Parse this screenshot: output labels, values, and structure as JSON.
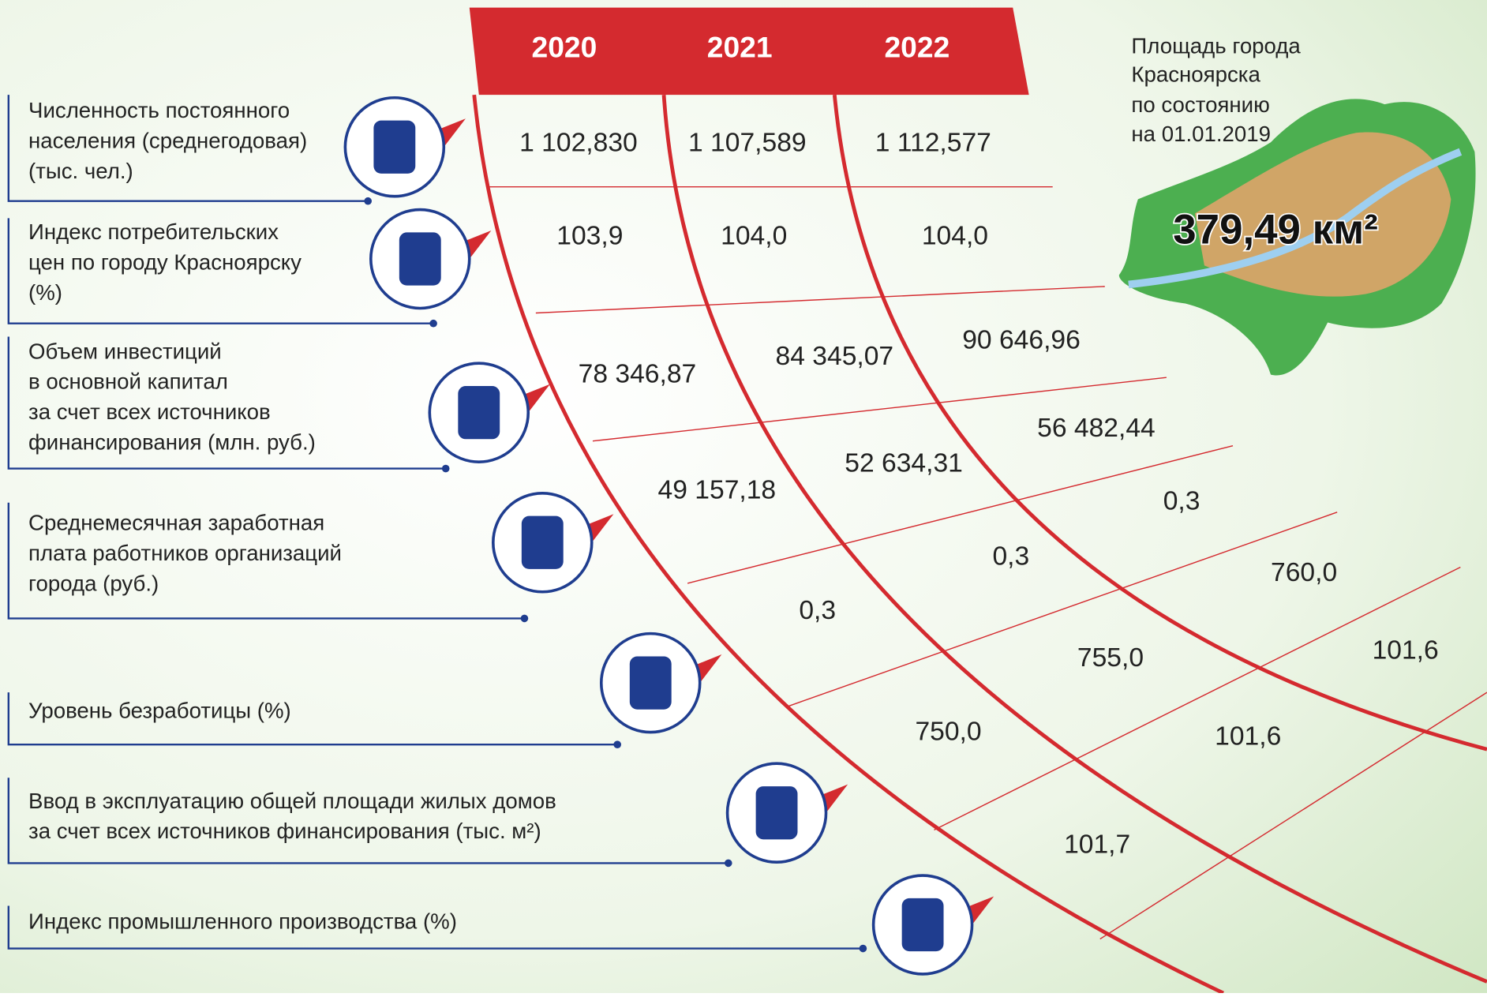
{
  "header": {
    "years": [
      "2020",
      "2021",
      "2022"
    ]
  },
  "map": {
    "caption": [
      "Площадь города",
      "Красноярска",
      "по состоянию",
      "на 01.01.2019"
    ],
    "area": "379,49 км²"
  },
  "rows": [
    {
      "label": [
        "Численность постоянного",
        "населения (среднегодовая)",
        "(тыс. чел.)"
      ],
      "values": [
        "1 102,830",
        "1 107,589",
        "1 112,577"
      ]
    },
    {
      "label": [
        "Индекс потребительских",
        "цен по городу Красноярску",
        "(%)"
      ],
      "values": [
        "103,9",
        "104,0",
        "104,0"
      ]
    },
    {
      "label": [
        "Объем инвестиций",
        "в основной капитал",
        "за счет всех источников",
        "финансирования (млн. руб.)"
      ],
      "values": [
        "78 346,87",
        "84 345,07",
        "90 646,96"
      ]
    },
    {
      "label": [
        "Среднемесячная заработная",
        "плата работников организаций",
        "города (руб.)"
      ],
      "values": [
        "49 157,18",
        "52 634,31",
        "56 482,44"
      ]
    },
    {
      "label": [
        "Уровень безработицы (%)"
      ],
      "values": [
        "0,3",
        "0,3",
        "0,3"
      ]
    },
    {
      "label": [
        "Ввод в эксплуатацию общей площади жилых домов",
        "за счет всех источников финансирования (тыс. м²)"
      ],
      "values": [
        "750,0",
        "755,0",
        "760,0"
      ]
    },
    {
      "label": [
        "Индекс промышленного производства (%)"
      ],
      "values": [
        "101,7",
        "101,6",
        "101,6"
      ]
    }
  ]
}
